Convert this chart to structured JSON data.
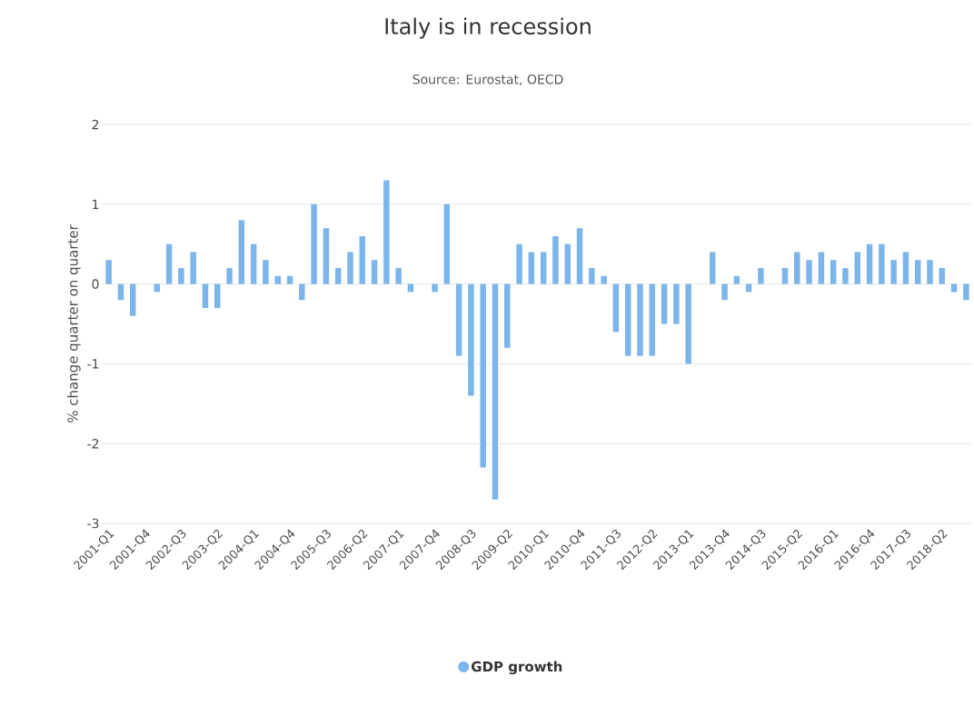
{
  "chart_data": {
    "type": "bar",
    "title": "Italy is in recession",
    "subtitle": "Source: Eurostat, OECD",
    "ylabel": "% change quarter on quarter",
    "categories": [
      "2001-Q1",
      null,
      null,
      "2001-Q4",
      null,
      null,
      "2002-Q3",
      null,
      null,
      "2003-Q2",
      null,
      null,
      "2004-Q1",
      null,
      null,
      "2004-Q4",
      null,
      null,
      "2005-Q3",
      null,
      null,
      "2006-Q2",
      null,
      null,
      "2007-Q1",
      null,
      null,
      "2007-Q4",
      null,
      null,
      "2008-Q3",
      null,
      null,
      "2009-Q2",
      null,
      null,
      "2010-Q1",
      null,
      null,
      "2010-Q4",
      null,
      null,
      "2011-Q3",
      null,
      null,
      "2012-Q2",
      null,
      null,
      "2013-Q1",
      null,
      null,
      "2013-Q4",
      null,
      null,
      "2014-Q3",
      null,
      null,
      "2015-Q2",
      null,
      null,
      "2016-Q1",
      null,
      null,
      "2016-Q4",
      null,
      null,
      "2017-Q3",
      null,
      null,
      "2018-Q2",
      null,
      null
    ],
    "series": [
      {
        "name": "GDP growth",
        "color": "#7cb5ec",
        "values": [
          0.3,
          -0.2,
          -0.4,
          0,
          -0.1,
          0.5,
          0.2,
          0.4,
          -0.3,
          -0.3,
          0.2,
          0.8,
          0.5,
          0.3,
          0.1,
          0.1,
          -0.2,
          1.0,
          0.7,
          0.2,
          0.4,
          0.6,
          0.3,
          1.3,
          0.2,
          -0.1,
          0,
          -0.1,
          1.0,
          -0.9,
          -1.4,
          -2.3,
          -2.7,
          -0.8,
          0.5,
          0.4,
          0.4,
          0.6,
          0.5,
          0.7,
          0.2,
          0.1,
          -0.6,
          -0.9,
          -0.9,
          -0.9,
          -0.5,
          -0.5,
          -1.0,
          0,
          0.4,
          -0.2,
          0.1,
          -0.1,
          0.2,
          0,
          0.2,
          0.4,
          0.3,
          0.4,
          0.3,
          0.2,
          0.4,
          0.5,
          0.5,
          0.3,
          0.4,
          0.3,
          0.3,
          0.2,
          -0.1,
          -0.2
        ]
      }
    ],
    "ylim": [
      -3,
      2
    ],
    "yticks": [
      -3,
      -2,
      -1,
      0,
      1,
      2
    ],
    "grid": "y",
    "legend": "bottom"
  }
}
